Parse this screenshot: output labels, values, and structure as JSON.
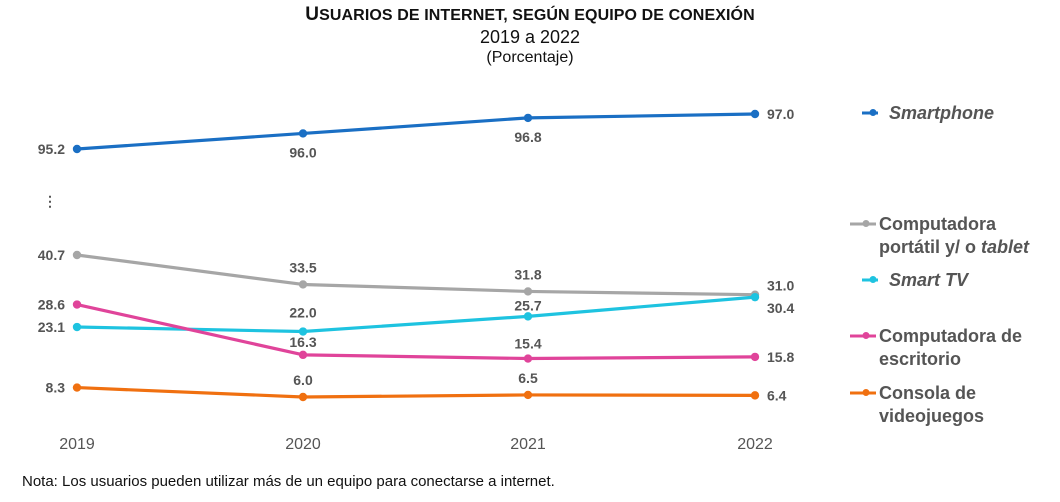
{
  "chart_data": {
    "type": "line",
    "title": "Usuarios de internet, según equipo de conexión",
    "title_first": "U",
    "title_rest": "SUARIOS DE INTERNET, SEGÚN EQUIPO DE CONEXIÓN",
    "subtitle": "2019 a 2022",
    "unit": "(Porcentaje)",
    "xlabel": "",
    "ylabel": "",
    "categories": [
      "2019",
      "2020",
      "2021",
      "2022"
    ],
    "axis_break_symbol": "⋮",
    "grid": false,
    "legend_position": "right",
    "series": [
      {
        "name": "Smartphone",
        "legend_parts": [
          {
            "text": "Smartphone",
            "italic": true
          }
        ],
        "color": "#1a6fc4",
        "values": [
          95.2,
          96.0,
          96.8,
          97.0
        ],
        "labels": [
          "95.2",
          "96.0",
          "96.8",
          "97.0"
        ]
      },
      {
        "name": "Computadora portátil y/ o tablet",
        "legend_lines": [
          [
            {
              "text": "Computadora",
              "italic": false
            }
          ],
          [
            {
              "text": "portátil y/ o ",
              "italic": false
            },
            {
              "text": "tablet",
              "italic": true
            }
          ]
        ],
        "color": "#a6a6a6",
        "values": [
          40.7,
          33.5,
          31.8,
          31.0
        ],
        "labels": [
          "40.7",
          "33.5",
          "31.8",
          "31.0"
        ]
      },
      {
        "name": "Smart TV",
        "legend_parts": [
          {
            "text": "Smart TV",
            "italic": true
          }
        ],
        "color": "#1ec3e0",
        "values": [
          23.1,
          22.0,
          25.7,
          30.4
        ],
        "labels": [
          "23.1",
          "22.0",
          "25.7",
          "30.4"
        ]
      },
      {
        "name": "Computadora de escritorio",
        "legend_lines": [
          [
            {
              "text": "Computadora de",
              "italic": false
            }
          ],
          [
            {
              "text": "escritorio",
              "italic": false
            }
          ]
        ],
        "color": "#e0449a",
        "values": [
          28.6,
          16.3,
          15.4,
          15.8
        ],
        "labels": [
          "28.6",
          "16.3",
          "15.4",
          "15.8"
        ]
      },
      {
        "name": "Consola de videojuegos",
        "legend_lines": [
          [
            {
              "text": "Consola de",
              "italic": false
            }
          ],
          [
            {
              "text": "videojuegos",
              "italic": false
            }
          ]
        ],
        "color": "#f07010",
        "values": [
          8.3,
          6.0,
          6.5,
          6.4
        ],
        "labels": [
          "8.3",
          "6.0",
          "6.5",
          "6.4"
        ]
      }
    ]
  },
  "note": "Nota: Los usuarios pueden utilizar más de un equipo para conectarse a internet."
}
